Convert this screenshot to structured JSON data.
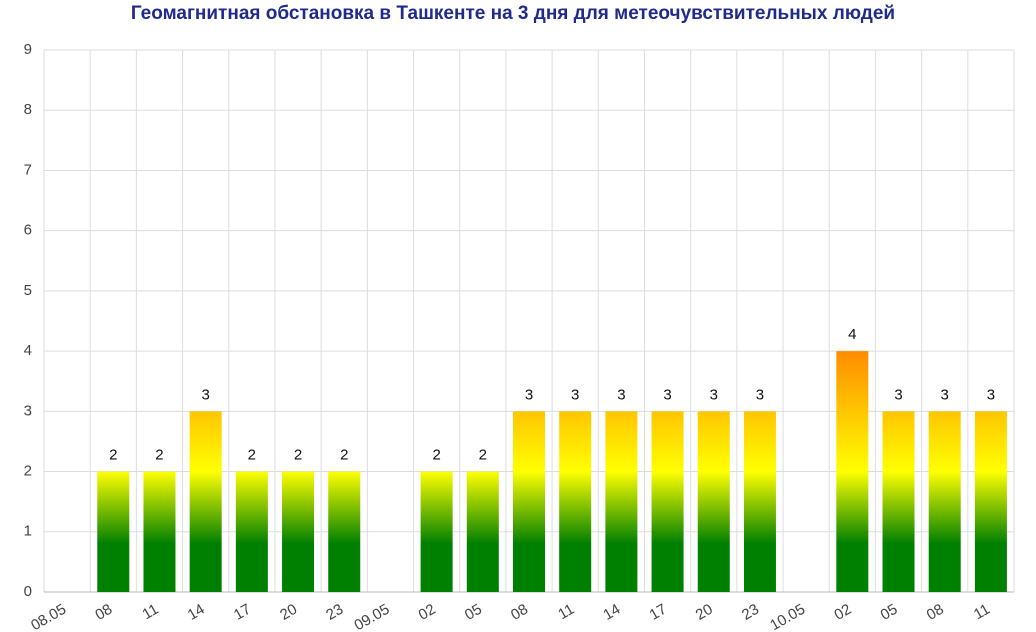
{
  "chart_data": {
    "type": "bar",
    "title": "Геомагнитная обстановка в Ташкенте на 3 дня для метеочувствительных людей",
    "categories": [
      "08.05",
      "08",
      "11",
      "14",
      "17",
      "20",
      "23",
      "09.05",
      "02",
      "05",
      "08",
      "11",
      "14",
      "17",
      "20",
      "23",
      "10.05",
      "02",
      "05",
      "08",
      "11"
    ],
    "values": [
      null,
      2,
      2,
      3,
      2,
      2,
      2,
      null,
      2,
      2,
      3,
      3,
      3,
      3,
      3,
      3,
      null,
      4,
      3,
      3,
      3
    ],
    "gradient": [
      "#008000",
      "#ffff00",
      "#ff8c00"
    ],
    "ylim": [
      0,
      9
    ],
    "yticks": [
      0,
      1,
      2,
      3,
      4,
      5,
      6,
      7,
      8,
      9
    ],
    "grid": true
  }
}
